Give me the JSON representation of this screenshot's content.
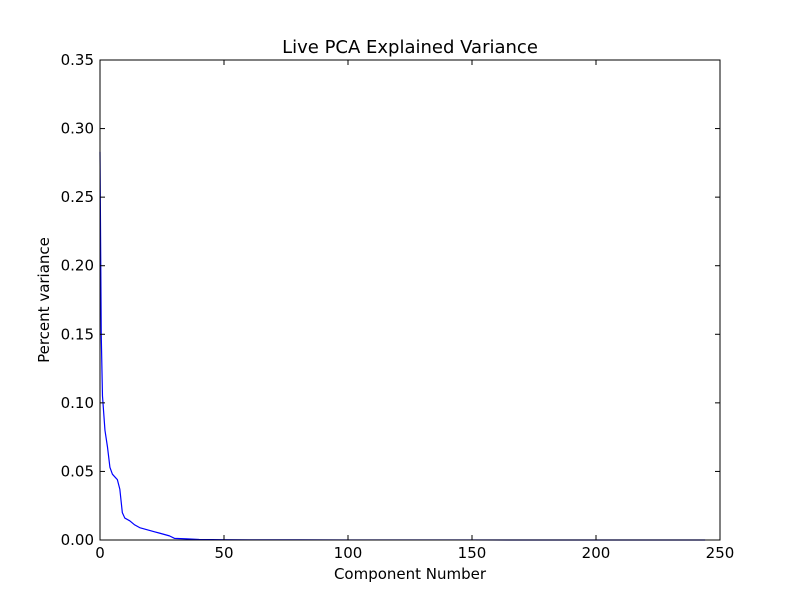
{
  "chart_data": {
    "type": "line",
    "title": "Live PCA Explained Variance",
    "xlabel": "Component Number",
    "ylabel": "Percent variance",
    "xlim": [
      0,
      250
    ],
    "ylim": [
      0,
      0.35
    ],
    "xticks": [
      0,
      50,
      100,
      150,
      200,
      250
    ],
    "xtick_labels": [
      "0",
      "50",
      "100",
      "150",
      "200",
      "250"
    ],
    "yticks": [
      0,
      0.05,
      0.1,
      0.15,
      0.2,
      0.25,
      0.3,
      0.35
    ],
    "ytick_labels": [
      "0.00",
      "0.05",
      "0.10",
      "0.15",
      "0.20",
      "0.25",
      "0.30",
      "0.35"
    ],
    "grid": false,
    "legend": false,
    "series": [
      {
        "color": "#0000ff",
        "x": [
          0,
          0.5,
          1,
          2,
          3,
          4,
          5,
          6,
          7,
          8,
          9,
          10,
          12,
          14,
          16,
          18,
          20,
          22,
          24,
          26,
          28,
          30,
          35,
          40,
          50,
          60,
          80,
          100,
          150,
          200,
          244
        ],
        "y": [
          0.283,
          0.15,
          0.105,
          0.08,
          0.068,
          0.053,
          0.048,
          0.046,
          0.044,
          0.037,
          0.02,
          0.016,
          0.014,
          0.011,
          0.009,
          0.008,
          0.007,
          0.006,
          0.005,
          0.004,
          0.003,
          0.0012,
          0.0008,
          0.0004,
          0.0002,
          0.0001,
          0.0001,
          5e-05,
          3e-05,
          2e-05,
          0.0
        ]
      }
    ]
  }
}
